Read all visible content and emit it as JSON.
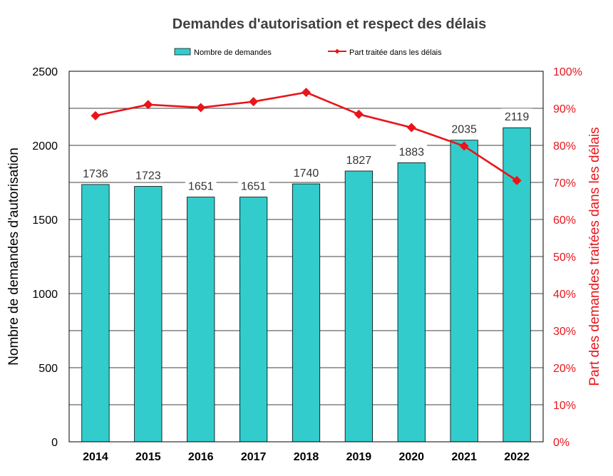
{
  "chart_data": {
    "type": "bar",
    "title": "Demandes d'autorisation et respect des délais",
    "categories": [
      "2014",
      "2015",
      "2016",
      "2017",
      "2018",
      "2019",
      "2020",
      "2021",
      "2022"
    ],
    "series": [
      {
        "name": "Nombre de demandes",
        "type": "bar",
        "axis": "left",
        "color": "#33CCCC",
        "values": [
          1736,
          1723,
          1651,
          1651,
          1740,
          1827,
          1883,
          2035,
          2119
        ]
      },
      {
        "name": "Part traitée dans les délais",
        "type": "line",
        "axis": "right",
        "color": "#E8151B",
        "marker": "diamond",
        "values": [
          0.88,
          0.91,
          0.902,
          0.918,
          0.943,
          0.884,
          0.848,
          0.798,
          0.705
        ]
      }
    ],
    "ylabel": "Nombre de demandes d'autorisation",
    "y2label": "Part des demandes traitées dans les délais",
    "ylim": [
      0,
      2500
    ],
    "y2lim": [
      0,
      1
    ],
    "yticks": [
      "0",
      "500",
      "1000",
      "1500",
      "2000",
      "2500"
    ],
    "y2ticks": [
      "0%",
      "10%",
      "20%",
      "30%",
      "40%",
      "50%",
      "60%",
      "70%",
      "80%",
      "90%",
      "100%"
    ],
    "data_labels": [
      "1736",
      "1723",
      "1651",
      "1651",
      "1740",
      "1827",
      "1883",
      "2035",
      "2119"
    ],
    "grid": true,
    "legend_position": "top"
  }
}
